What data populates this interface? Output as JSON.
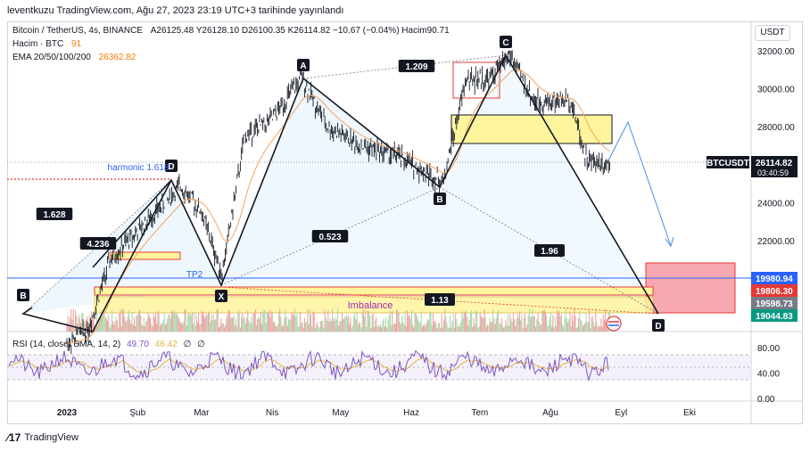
{
  "header": {
    "text": "leventkuzu TradingView.com, Ağu 27, 2023 23:19 UTC+3 tarihinde yayınlandı"
  },
  "legend": {
    "symbol": "Bitcoin / TetherUS, 4s, BINANCE",
    "ohlc": "A26125.48  Y26128.10  D26100.35  K26114.82  −10.67 (−0.04%)  Hacim90.71",
    "volume_label": "Hacim · BTC",
    "volume_value": "91",
    "ema_label": "EMA 20/50/100/200",
    "ema_value": "26362.82",
    "rsi_label": "RSI (14, close, SMA, 14, 2)",
    "rsi_value": "49.70",
    "rsi_sma": "46.42",
    "rsi_extra1": "∅",
    "rsi_extra2": "∅"
  },
  "currency_button": "USDT",
  "footer_logo": "TradingView",
  "colors": {
    "candle_up": "#131722",
    "ema_orange": "#f7a35c",
    "pattern_line": "#131722",
    "fib_blue": "#2962ff",
    "rect_yellow": "#fff59d",
    "rect_red": "#f7a8b0",
    "rsi_purple": "#7e57c2"
  },
  "chart_data": [
    {
      "type": "line",
      "title": "Bitcoin / TetherUS, 4s, BINANCE",
      "y_axis_ticks": [
        "32000.00",
        "30000.00",
        "28000.00",
        "26000.00",
        "24000.00",
        "22000.00"
      ],
      "ylim": [
        18000,
        33000
      ],
      "x_axis_ticks": [
        "2023",
        "Şub",
        "Mar",
        "Nis",
        "May",
        "Haz",
        "Tem",
        "Ağu",
        "Eyl",
        "Eki"
      ],
      "price_labels": [
        {
          "label": "BTCUSDT",
          "value": "26114.82",
          "countdown": "03:40:59",
          "kind": "last"
        },
        {
          "value": "19980.94",
          "kind": "blue"
        },
        {
          "value": "19806.30",
          "kind": "red"
        },
        {
          "value": "19598.73",
          "kind": "gray"
        },
        {
          "value": "19044.83",
          "kind": "green"
        }
      ],
      "series": [
        {
          "name": "BTCUSDT",
          "x": [
            "2023-01-01",
            "2023-01-10",
            "2023-01-20",
            "2023-02-05",
            "2023-02-20",
            "2023-03-01",
            "2023-03-10",
            "2023-03-20",
            "2023-04-01",
            "2023-04-14",
            "2023-04-25",
            "2023-05-10",
            "2023-05-25",
            "2023-06-15",
            "2023-06-25",
            "2023-07-05",
            "2023-07-14",
            "2023-07-25",
            "2023-08-10",
            "2023-08-17",
            "2023-08-27"
          ],
          "values": [
            16600,
            17200,
            21000,
            23000,
            24900,
            23500,
            20200,
            27500,
            28400,
            30600,
            28000,
            27000,
            26500,
            25100,
            30500,
            30500,
            31800,
            29300,
            29400,
            26200,
            26100
          ]
        }
      ],
      "annotations": [
        {
          "text": "A",
          "kind": "pattern-point"
        },
        {
          "text": "B",
          "kind": "pattern-point"
        },
        {
          "text": "C",
          "kind": "pattern-point"
        },
        {
          "text": "D",
          "kind": "pattern-point"
        },
        {
          "text": "X",
          "kind": "pattern-point"
        },
        {
          "text": "B",
          "kind": "pattern-point"
        },
        {
          "text": "D",
          "kind": "pattern-point"
        },
        {
          "text": "1.209",
          "kind": "ratio"
        },
        {
          "text": "1.628",
          "kind": "ratio"
        },
        {
          "text": "4.236",
          "kind": "ratio"
        },
        {
          "text": "0.523",
          "kind": "ratio"
        },
        {
          "text": "1.96",
          "kind": "ratio"
        },
        {
          "text": "1.13",
          "kind": "ratio"
        },
        {
          "text": "harmonic 1.618",
          "kind": "fib"
        },
        {
          "text": "TP2",
          "kind": "fib"
        },
        {
          "text": "Imbalance",
          "kind": "zone"
        }
      ]
    },
    {
      "type": "line",
      "title": "RSI (14, close, SMA, 14, 2)",
      "y_axis_ticks": [
        "80.00",
        "40.00",
        "0.00"
      ],
      "ylim": [
        0,
        100
      ],
      "series": [
        {
          "name": "RSI",
          "values": [
            49.7
          ]
        },
        {
          "name": "RSI-based MA",
          "values": [
            46.42
          ]
        }
      ]
    }
  ]
}
